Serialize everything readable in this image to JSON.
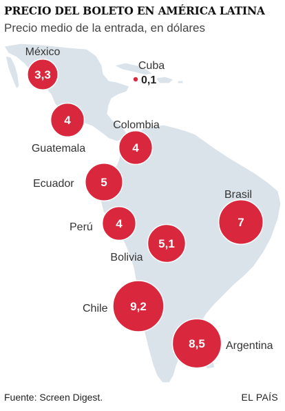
{
  "header": {
    "title": "PRECIO DEL BOLETO EN AMÉRICA LATINA",
    "subtitle": "Precio medio de la entrada, en dólares"
  },
  "footer": {
    "source": "Fuente: Screen Digest.",
    "brand": "EL PAÍS"
  },
  "colors": {
    "bubble": "#d9283e",
    "land": "#dbe3ea",
    "land_border": "#ffffff",
    "label": "#333333"
  },
  "chart_data": {
    "type": "bubble-map",
    "categories": [
      "México",
      "Cuba",
      "Guatemala",
      "Colombia",
      "Ecuador",
      "Perú",
      "Bolivia",
      "Brasil",
      "Chile",
      "Argentina"
    ],
    "values": [
      3.3,
      0.1,
      4,
      4,
      5,
      4,
      5.1,
      7,
      9.2,
      8.5
    ],
    "value_labels": [
      "3,3",
      "0,1",
      "4",
      "4",
      "5",
      "4",
      "5,1",
      "7",
      "9,2",
      "8,5"
    ],
    "unit": "dólares"
  }
}
